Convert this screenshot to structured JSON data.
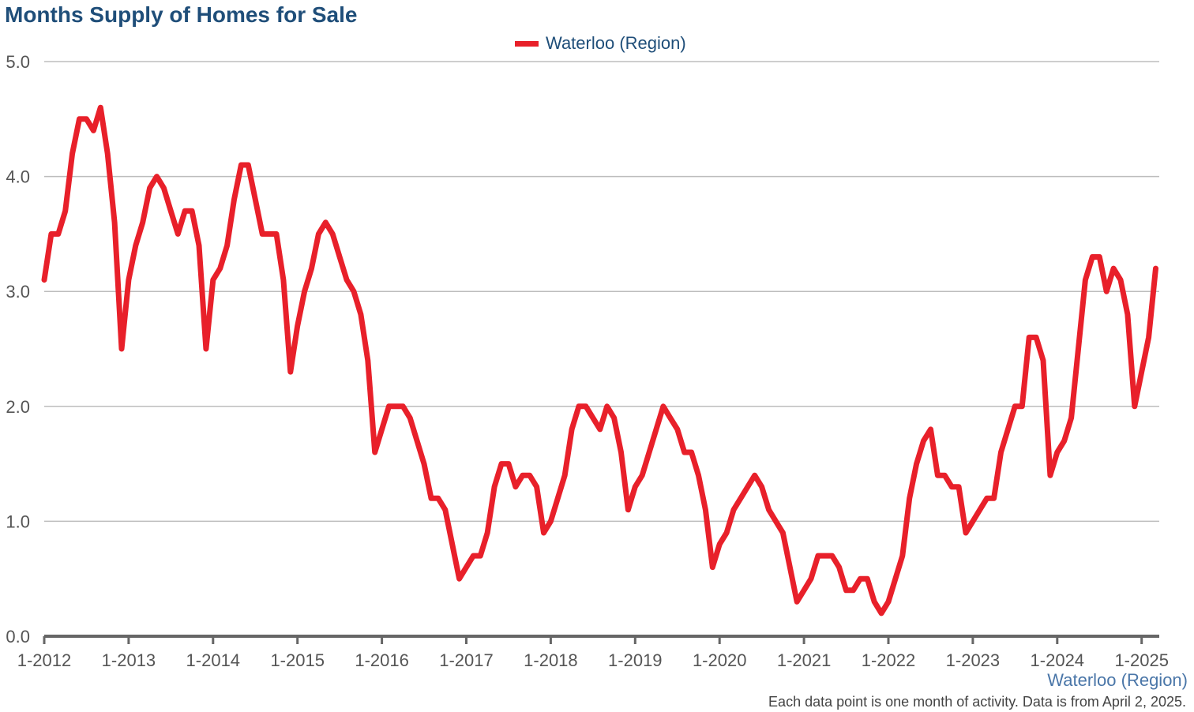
{
  "chart_data": {
    "type": "line",
    "title": "Months Supply of Homes for Sale",
    "xlabel": "Waterloo (Region)",
    "ylabel": "",
    "ylim": [
      0,
      5
    ],
    "yticks": [
      "0.0",
      "1.0",
      "2.0",
      "3.0",
      "4.0",
      "5.0"
    ],
    "xticks": [
      "1-2012",
      "1-2013",
      "1-2014",
      "1-2015",
      "1-2016",
      "1-2017",
      "1-2018",
      "1-2019",
      "1-2020",
      "1-2021",
      "1-2022",
      "1-2023",
      "1-2024",
      "1-2025"
    ],
    "grid": "horizontal",
    "legend_position": "top-center",
    "start_month": "1-2012",
    "series": [
      {
        "name": "Waterloo (Region)",
        "color": "#e8202a",
        "values": [
          3.1,
          3.5,
          3.5,
          3.7,
          4.2,
          4.5,
          4.5,
          4.4,
          4.6,
          4.2,
          3.6,
          2.5,
          3.1,
          3.4,
          3.6,
          3.9,
          4.0,
          3.9,
          3.7,
          3.5,
          3.7,
          3.7,
          3.4,
          2.5,
          3.1,
          3.2,
          3.4,
          3.8,
          4.1,
          4.1,
          3.8,
          3.5,
          3.5,
          3.5,
          3.1,
          2.3,
          2.7,
          3.0,
          3.2,
          3.5,
          3.6,
          3.5,
          3.3,
          3.1,
          3.0,
          2.8,
          2.4,
          1.6,
          1.8,
          2.0,
          2.0,
          2.0,
          1.9,
          1.7,
          1.5,
          1.2,
          1.2,
          1.1,
          0.8,
          0.5,
          0.6,
          0.7,
          0.7,
          0.9,
          1.3,
          1.5,
          1.5,
          1.3,
          1.4,
          1.4,
          1.3,
          0.9,
          1.0,
          1.2,
          1.4,
          1.8,
          2.0,
          2.0,
          1.9,
          1.8,
          2.0,
          1.9,
          1.6,
          1.1,
          1.3,
          1.4,
          1.6,
          1.8,
          2.0,
          1.9,
          1.8,
          1.6,
          1.6,
          1.4,
          1.1,
          0.6,
          0.8,
          0.9,
          1.1,
          1.2,
          1.3,
          1.4,
          1.3,
          1.1,
          1.0,
          0.9,
          0.6,
          0.3,
          0.4,
          0.5,
          0.7,
          0.7,
          0.7,
          0.6,
          0.4,
          0.4,
          0.5,
          0.5,
          0.3,
          0.2,
          0.3,
          0.5,
          0.7,
          1.2,
          1.5,
          1.7,
          1.8,
          1.4,
          1.4,
          1.3,
          1.3,
          0.9,
          1.0,
          1.1,
          1.2,
          1.2,
          1.6,
          1.8,
          2.0,
          2.0,
          2.6,
          2.6,
          2.4,
          1.4,
          1.6,
          1.7,
          1.9,
          2.5,
          3.1,
          3.3,
          3.3,
          3.0,
          3.2,
          3.1,
          2.8,
          2.0,
          2.3,
          2.6,
          3.2
        ]
      }
    ]
  },
  "region_label": "Waterloo (Region)",
  "footnote": "Each data point is one month of activity. Data is from April 2, 2025."
}
